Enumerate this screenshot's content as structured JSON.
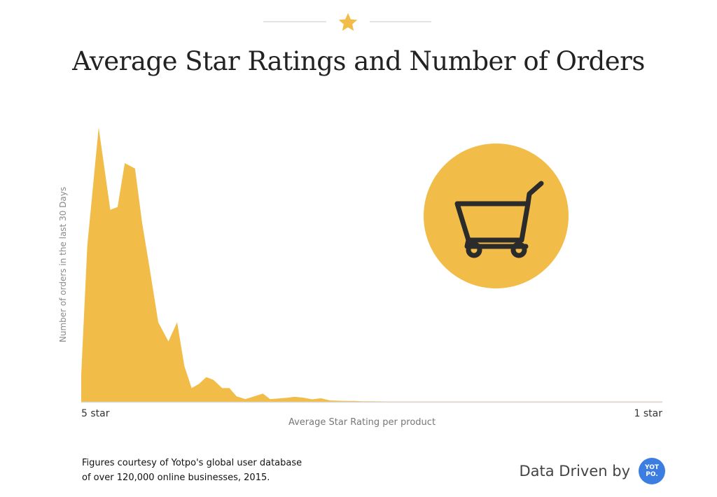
{
  "decoration": {
    "star_icon": "star-icon",
    "star_color": "#f1bd48"
  },
  "chart_data": {
    "type": "area",
    "title": "Average Star Ratings and Number of Orders",
    "xlabel": "Average Star Rating per product",
    "ylabel": "Number of orders in the last 30 Days",
    "x_tick_labels": [
      "5 star",
      "1 star"
    ],
    "x_range": [
      5,
      1
    ],
    "ylim": [
      0,
      100
    ],
    "grid": false,
    "legend": "none",
    "fill_color": "#f1bd48",
    "x": [
      5.0,
      4.958,
      4.88,
      4.8,
      4.75,
      4.7,
      4.63,
      4.58,
      4.53,
      4.47,
      4.4,
      4.34,
      4.29,
      4.24,
      4.19,
      4.14,
      4.09,
      4.03,
      3.98,
      3.93,
      3.87,
      3.81,
      3.75,
      3.7,
      3.64,
      3.58,
      3.53,
      3.47,
      3.41,
      3.35,
      3.29,
      3.24,
      3.18,
      3.12,
      3.07,
      3.0,
      2.95,
      2.87,
      2.83,
      2.78,
      2.7,
      2.6,
      2.5,
      2.4,
      2.3,
      2.2,
      2.1,
      2.0,
      1.75,
      1.5,
      1.25,
      1.0
    ],
    "values": [
      10,
      57,
      100,
      70,
      71,
      87,
      85,
      65,
      49,
      29,
      22,
      29,
      13,
      5,
      6.5,
      9,
      8,
      5,
      5,
      2,
      1,
      2,
      3,
      1,
      1.2,
      1.5,
      1.8,
      1.5,
      0.9,
      1.3,
      0.5,
      0.4,
      0.3,
      0.3,
      0.2,
      0.2,
      0.15,
      0.1,
      0.1,
      0.1,
      0.1,
      0.1,
      0.1,
      0.1,
      0.1,
      0.1,
      0.1,
      0.1,
      0.1,
      0.1,
      0.1,
      0.1
    ]
  },
  "cart": {
    "icon": "shopping-cart-icon",
    "circle_color": "#f1bd48",
    "stroke_color": "#2b2b2b"
  },
  "footer": {
    "note_line1": "Figures courtesy of Yotpo's global user database",
    "note_line2": "of over 120,000 online businesses, 2015.",
    "brand_text": "Data Driven by",
    "brand_logo_text": "YOT PO.",
    "brand_logo_color": "#3b7de0"
  }
}
